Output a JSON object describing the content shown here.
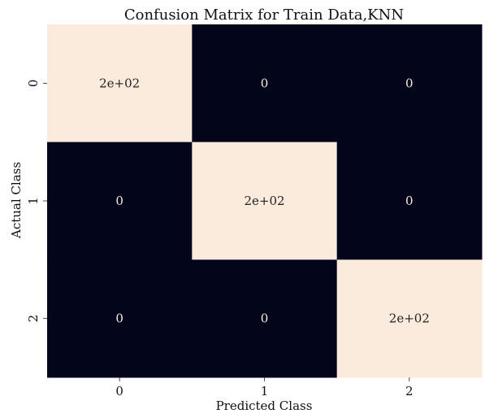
{
  "chart_data": {
    "type": "heatmap",
    "title": "Confusion Matrix for Train Data,KNN",
    "xlabel": "Predicted Class",
    "ylabel": "Actual Class",
    "x_categories": [
      "0",
      "1",
      "2"
    ],
    "y_categories": [
      "0",
      "1",
      "2"
    ],
    "values": [
      [
        200,
        0,
        0
      ],
      [
        0,
        200,
        0
      ],
      [
        0,
        0,
        200
      ]
    ],
    "cell_labels": [
      [
        "2e+02",
        "0",
        "0"
      ],
      [
        "0",
        "2e+02",
        "0"
      ],
      [
        "0",
        "0",
        "2e+02"
      ]
    ],
    "colorbar": false,
    "colors": {
      "low": "#03051a",
      "high": "#faebdd",
      "text_on_low": "#faebdd",
      "text_on_high": "#222222"
    }
  }
}
